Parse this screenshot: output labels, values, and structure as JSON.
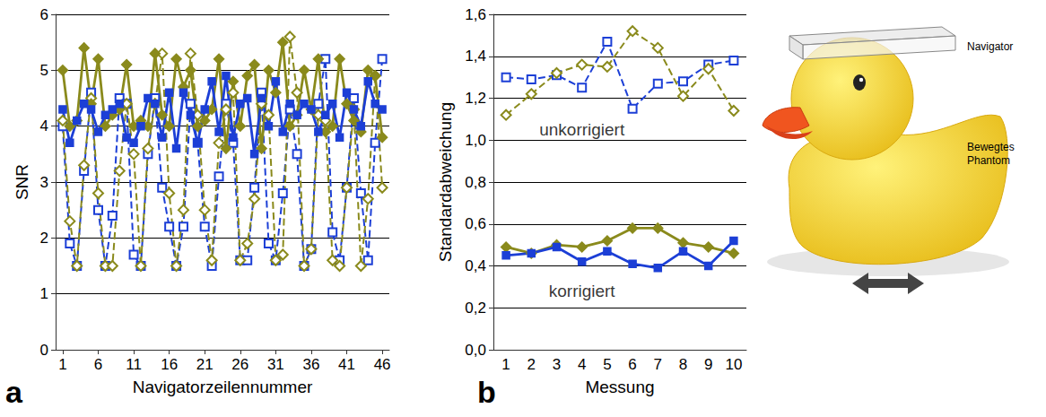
{
  "chart_data": [
    {
      "panel": "a",
      "type": "line",
      "xlabel": "Navigatorzeilennummer",
      "ylabel": "SNR",
      "x": [
        1,
        2,
        3,
        4,
        5,
        6,
        7,
        8,
        9,
        10,
        11,
        12,
        13,
        14,
        15,
        16,
        17,
        18,
        19,
        20,
        21,
        22,
        23,
        24,
        25,
        26,
        27,
        28,
        29,
        30,
        31,
        32,
        33,
        34,
        35,
        36,
        37,
        38,
        39,
        40,
        41,
        42,
        43,
        44,
        45,
        46
      ],
      "xlim": [
        0,
        47
      ],
      "xticks": [
        1,
        6,
        11,
        16,
        21,
        26,
        31,
        36,
        41,
        46
      ],
      "ylim": [
        0,
        6
      ],
      "yticks": [
        0,
        1,
        2,
        3,
        4,
        5,
        6
      ],
      "grid": true,
      "series": [
        {
          "color": "#1c3fd6",
          "marker": "open_square",
          "line_style": "dashed",
          "values": [
            4.0,
            1.9,
            1.5,
            3.2,
            4.6,
            2.5,
            1.5,
            2.4,
            4.5,
            4.4,
            1.7,
            1.5,
            3.5,
            4.5,
            2.9,
            2.2,
            1.5,
            2.2,
            4.4,
            3.7,
            2.2,
            1.5,
            3.1,
            4.4,
            3.7,
            1.6,
            1.6,
            2.9,
            4.6,
            1.9,
            1.6,
            2.8,
            4.3,
            3.5,
            1.5,
            1.8,
            4.4,
            5.2,
            2.1,
            1.6,
            2.9,
            4.5,
            2.8,
            1.6,
            3.7,
            5.2
          ]
        },
        {
          "color": "#8a8a1c",
          "marker": "open_diamond",
          "line_style": "dashed",
          "values": [
            4.1,
            2.3,
            1.5,
            3.3,
            4.5,
            2.8,
            1.5,
            1.5,
            3.2,
            4.4,
            3.5,
            1.5,
            3.6,
            4.4,
            5.3,
            2.8,
            1.5,
            2.5,
            5.3,
            4.2,
            2.5,
            1.6,
            3.7,
            4.3,
            4.6,
            1.6,
            1.9,
            2.7,
            4.4,
            4.2,
            1.6,
            1.7,
            5.6,
            4.6,
            1.5,
            1.8,
            4.2,
            4.1,
            1.6,
            1.5,
            2.9,
            4.3,
            1.5,
            2.7,
            4.9,
            2.9
          ]
        },
        {
          "color": "#8a8a1c",
          "marker": "diamond",
          "line_style": "solid",
          "values": [
            5.0,
            4.0,
            4.1,
            5.4,
            4.4,
            5.2,
            4.0,
            4.2,
            4.3,
            5.1,
            4.0,
            4.1,
            4.0,
            5.3,
            4.2,
            4.0,
            5.2,
            4.7,
            5.0,
            4.0,
            4.1,
            4.3,
            5.2,
            3.6,
            4.8,
            4.0,
            4.9,
            5.1,
            3.6,
            5.0,
            4.6,
            5.5,
            4.0,
            4.2,
            5.0,
            4.3,
            5.2,
            3.9,
            4.0,
            5.2,
            4.4,
            4.1,
            3.9,
            5.0,
            4.9,
            3.8
          ]
        },
        {
          "color": "#1c3fd6",
          "marker": "square",
          "line_style": "solid",
          "values": [
            4.3,
            3.7,
            4.1,
            4.4,
            4.3,
            3.9,
            4.2,
            4.3,
            4.4,
            3.8,
            3.7,
            4.0,
            4.5,
            4.4,
            3.8,
            4.6,
            3.6,
            4.6,
            4.2,
            3.7,
            4.3,
            4.8,
            3.9,
            4.9,
            3.8,
            4.4,
            4.5,
            3.5,
            4.5,
            4.0,
            4.8,
            3.9,
            4.4,
            4.2,
            4.4,
            4.3,
            3.9,
            4.2,
            4.4,
            3.8,
            4.6,
            4.3,
            4.0,
            4.8,
            4.4,
            4.3
          ]
        }
      ]
    },
    {
      "panel": "b",
      "type": "line",
      "xlabel": "Messung",
      "ylabel": "Standardabweichung",
      "categories": [
        1,
        2,
        3,
        4,
        5,
        6,
        7,
        8,
        9,
        10
      ],
      "ylim": [
        0,
        1.6
      ],
      "yticks": [
        {
          "value": 0,
          "label": "0,0"
        },
        {
          "value": 0.2,
          "label": "0,2"
        },
        {
          "value": 0.4,
          "label": "0,4"
        },
        {
          "value": 0.6,
          "label": "0,6"
        },
        {
          "value": 0.8,
          "label": "0,8"
        },
        {
          "value": 1.0,
          "label": "1,0"
        },
        {
          "value": 1.2,
          "label": "1,2"
        },
        {
          "value": 1.4,
          "label": "1,4"
        },
        {
          "value": 1.6,
          "label": "1,6"
        }
      ],
      "grid": true,
      "annotations": [
        {
          "text": "unkorrigiert",
          "x": 4,
          "y": 1.05
        },
        {
          "text": "korrigiert",
          "x": 4,
          "y": 0.28
        }
      ],
      "series": [
        {
          "color": "#1c3fd6",
          "marker": "open_square",
          "line_style": "dashed",
          "values": [
            1.3,
            1.29,
            1.31,
            1.25,
            1.47,
            1.15,
            1.27,
            1.28,
            1.36,
            1.38
          ]
        },
        {
          "color": "#8a8a1c",
          "marker": "open_diamond",
          "line_style": "dashed",
          "values": [
            1.12,
            1.22,
            1.32,
            1.36,
            1.35,
            1.52,
            1.44,
            1.21,
            1.34,
            1.14
          ]
        },
        {
          "color": "#8a8a1c",
          "marker": "diamond",
          "line_style": "solid",
          "values": [
            0.49,
            0.46,
            0.5,
            0.49,
            0.52,
            0.58,
            0.58,
            0.51,
            0.49,
            0.46
          ]
        },
        {
          "color": "#1c3fd6",
          "marker": "square",
          "line_style": "solid",
          "values": [
            0.45,
            0.46,
            0.49,
            0.42,
            0.47,
            0.41,
            0.39,
            0.47,
            0.4,
            0.52
          ]
        }
      ]
    }
  ],
  "illustration": {
    "labels": [
      "Navigator",
      "Bewegtes Phantom"
    ]
  }
}
